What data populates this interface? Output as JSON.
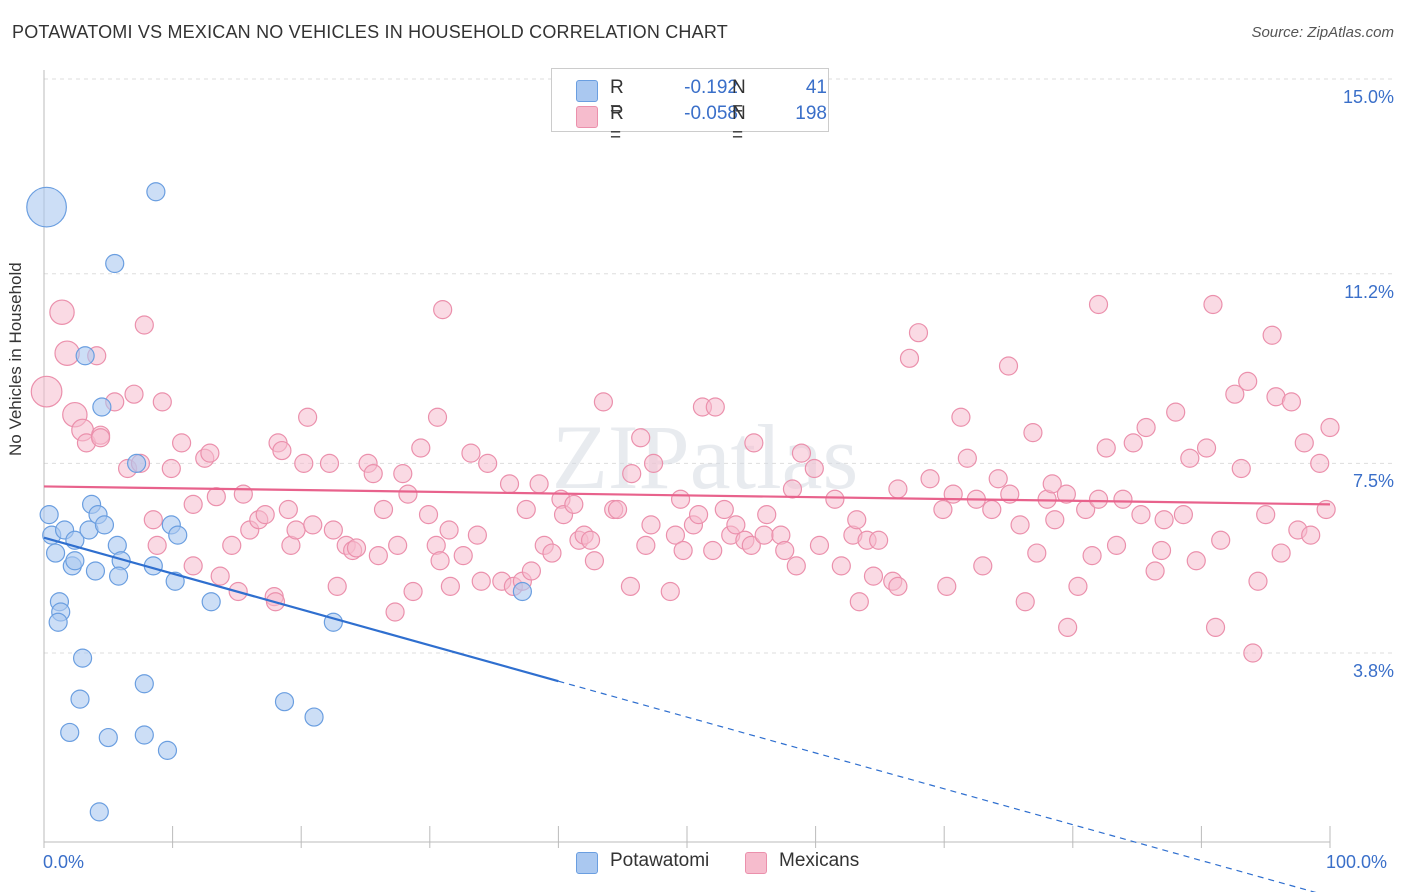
{
  "title": "POTAWATOMI VS MEXICAN NO VEHICLES IN HOUSEHOLD CORRELATION CHART",
  "source": "Source: ZipAtlas.com",
  "watermark": "ZIPatlas",
  "legend_top": {
    "rows": [
      {
        "r_label": "R =",
        "r_value": "-0.192",
        "n_label": "N =",
        "n_value": "41"
      },
      {
        "r_label": "R =",
        "r_value": "-0.058",
        "n_label": "N =",
        "n_value": "198"
      }
    ]
  },
  "legend_bottom": {
    "potawatomi": "Potawatomi",
    "mexicans": "Mexicans"
  },
  "colors": {
    "blue_fill": "#aac8f0",
    "blue_stroke": "#6a9ee0",
    "blue_line": "#2f6fcf",
    "pink_fill": "#f6bccd",
    "pink_stroke": "#eb90ac",
    "pink_line": "#e8628c",
    "axis_text": "#3a6fc9",
    "grid": "#dddddd"
  },
  "chart_data": {
    "type": "scatter",
    "title": "POTAWATOMI VS MEXICAN NO VEHICLES IN HOUSEHOLD CORRELATION CHART",
    "xlabel": "",
    "ylabel": "No Vehicles in Household",
    "xlim": [
      0,
      100
    ],
    "ylim": [
      0,
      15.5
    ],
    "x_tick_labels": [
      "0.0%",
      "100.0%"
    ],
    "y_ticks": [
      3.8,
      7.5,
      11.2,
      15.0
    ],
    "y_tick_labels": [
      "3.8%",
      "7.5%",
      "11.2%",
      "15.0%"
    ],
    "series": [
      {
        "name": "Potawatomi",
        "r": -0.192,
        "n": 41,
        "trend": {
          "x0": 0,
          "y0": 6.05,
          "x1": 40,
          "y1": 3.25,
          "dashed_to_x": 100
        },
        "points": [
          [
            0.2,
            12.5,
            2.2
          ],
          [
            8.7,
            12.8,
            1
          ],
          [
            5.5,
            11.4,
            1
          ],
          [
            3.2,
            9.6,
            1
          ],
          [
            4.5,
            8.6,
            1
          ],
          [
            7.2,
            7.5,
            1
          ],
          [
            0.4,
            6.5,
            1
          ],
          [
            0.6,
            6.1,
            1
          ],
          [
            1.6,
            6.2,
            1
          ],
          [
            2.4,
            6.0,
            1
          ],
          [
            3.5,
            6.2,
            1
          ],
          [
            3.7,
            6.7,
            1
          ],
          [
            4.2,
            6.5,
            1
          ],
          [
            4.7,
            6.3,
            1
          ],
          [
            5.7,
            5.9,
            1
          ],
          [
            6.0,
            5.6,
            1
          ],
          [
            9.9,
            6.3,
            1
          ],
          [
            10.4,
            6.1,
            1
          ],
          [
            0.9,
            5.75,
            1
          ],
          [
            2.2,
            5.5,
            1
          ],
          [
            2.4,
            5.6,
            1
          ],
          [
            4.0,
            5.4,
            1
          ],
          [
            5.8,
            5.3,
            1
          ],
          [
            8.5,
            5.5,
            1
          ],
          [
            10.2,
            5.2,
            1
          ],
          [
            13.0,
            4.8,
            1
          ],
          [
            37.2,
            5.0,
            1
          ],
          [
            22.5,
            4.4,
            1
          ],
          [
            1.2,
            4.8,
            1
          ],
          [
            1.3,
            4.6,
            1
          ],
          [
            1.1,
            4.4,
            1
          ],
          [
            3.0,
            3.7,
            1
          ],
          [
            2.8,
            2.9,
            1
          ],
          [
            7.8,
            3.2,
            1
          ],
          [
            18.7,
            2.85,
            1
          ],
          [
            21.0,
            2.55,
            1
          ],
          [
            2.0,
            2.25,
            1
          ],
          [
            5.0,
            2.15,
            1
          ],
          [
            7.8,
            2.2,
            1
          ],
          [
            9.6,
            1.9,
            1
          ],
          [
            4.3,
            0.7,
            1
          ]
        ]
      },
      {
        "name": "Mexicans",
        "r": -0.058,
        "n": 198,
        "trend": {
          "x0": 0,
          "y0": 7.05,
          "x1": 100,
          "y1": 6.7
        },
        "points": [
          [
            0.2,
            8.9,
            1.7
          ],
          [
            1.4,
            10.45,
            1.35
          ],
          [
            1.8,
            9.65,
            1.35
          ],
          [
            2.4,
            8.45,
            1.35
          ],
          [
            3.0,
            8.15,
            1.2
          ],
          [
            3.3,
            7.9,
            1
          ],
          [
            4.1,
            9.6,
            1
          ],
          [
            4.4,
            8.05,
            1
          ],
          [
            4.4,
            8.0,
            1
          ],
          [
            5.5,
            8.7,
            1
          ],
          [
            6.5,
            7.4,
            1
          ],
          [
            7.0,
            8.85,
            1
          ],
          [
            7.5,
            7.5,
            1
          ],
          [
            7.8,
            10.2,
            1
          ],
          [
            9.2,
            8.7,
            1
          ],
          [
            8.5,
            6.4,
            1
          ],
          [
            8.8,
            5.9,
            1
          ],
          [
            9.9,
            7.4,
            1
          ],
          [
            10.7,
            7.9,
            1
          ],
          [
            11.6,
            6.7,
            1
          ],
          [
            11.6,
            5.5,
            1
          ],
          [
            12.5,
            7.6,
            1
          ],
          [
            12.9,
            7.7,
            1
          ],
          [
            13.4,
            6.85,
            1
          ],
          [
            13.7,
            5.3,
            1
          ],
          [
            14.6,
            5.9,
            1
          ],
          [
            15.1,
            5.0,
            1
          ],
          [
            15.5,
            6.9,
            1
          ],
          [
            16.0,
            6.2,
            1
          ],
          [
            16.7,
            6.4,
            1
          ],
          [
            17.2,
            6.5,
            1
          ],
          [
            17.9,
            4.9,
            1
          ],
          [
            18.0,
            4.8,
            1
          ],
          [
            18.2,
            7.9,
            1
          ],
          [
            18.5,
            7.75,
            1
          ],
          [
            19.2,
            5.9,
            1
          ],
          [
            19.0,
            6.6,
            1
          ],
          [
            19.6,
            6.2,
            1
          ],
          [
            20.2,
            7.5,
            1
          ],
          [
            20.5,
            8.4,
            1
          ],
          [
            20.9,
            6.3,
            1
          ],
          [
            22.2,
            7.5,
            1
          ],
          [
            22.5,
            6.2,
            1
          ],
          [
            22.8,
            5.1,
            1
          ],
          [
            23.5,
            5.9,
            1
          ],
          [
            24.0,
            5.8,
            1
          ],
          [
            24.3,
            5.85,
            1
          ],
          [
            25.2,
            7.5,
            1
          ],
          [
            25.6,
            7.3,
            1
          ],
          [
            26.0,
            5.7,
            1
          ],
          [
            26.4,
            6.6,
            1
          ],
          [
            27.3,
            4.6,
            1
          ],
          [
            27.5,
            5.9,
            1
          ],
          [
            27.9,
            7.3,
            1
          ],
          [
            28.3,
            6.9,
            1
          ],
          [
            28.7,
            5.0,
            1
          ],
          [
            29.3,
            7.8,
            1
          ],
          [
            29.9,
            6.5,
            1
          ],
          [
            30.5,
            5.9,
            1
          ],
          [
            30.6,
            8.4,
            1
          ],
          [
            30.8,
            5.6,
            1
          ],
          [
            31.0,
            10.5,
            1
          ],
          [
            31.5,
            6.2,
            1
          ],
          [
            31.6,
            5.1,
            1
          ],
          [
            32.6,
            5.7,
            1
          ],
          [
            33.2,
            7.7,
            1
          ],
          [
            33.7,
            6.1,
            1
          ],
          [
            34.0,
            5.2,
            1
          ],
          [
            34.5,
            7.5,
            1
          ],
          [
            35.6,
            5.2,
            1
          ],
          [
            36.2,
            7.1,
            1
          ],
          [
            36.5,
            5.1,
            1
          ],
          [
            37.2,
            5.2,
            1
          ],
          [
            37.5,
            6.6,
            1
          ],
          [
            37.9,
            5.4,
            1
          ],
          [
            38.5,
            7.1,
            1
          ],
          [
            38.9,
            5.9,
            1
          ],
          [
            39.5,
            5.75,
            1
          ],
          [
            40.2,
            6.8,
            1
          ],
          [
            40.4,
            6.5,
            1
          ],
          [
            41.2,
            6.7,
            1
          ],
          [
            41.6,
            6.0,
            1
          ],
          [
            42.0,
            6.1,
            1
          ],
          [
            42.5,
            6.0,
            1
          ],
          [
            42.8,
            5.6,
            1
          ],
          [
            43.5,
            8.7,
            1
          ],
          [
            44.3,
            6.6,
            1
          ],
          [
            44.6,
            6.6,
            1
          ],
          [
            45.6,
            5.1,
            1
          ],
          [
            45.7,
            7.3,
            1
          ],
          [
            46.4,
            8.0,
            1
          ],
          [
            46.8,
            5.9,
            1
          ],
          [
            47.2,
            6.3,
            1
          ],
          [
            47.4,
            7.5,
            1
          ],
          [
            48.7,
            5.0,
            1
          ],
          [
            49.1,
            6.1,
            1
          ],
          [
            49.5,
            6.8,
            1
          ],
          [
            49.7,
            5.8,
            1
          ],
          [
            50.5,
            6.3,
            1
          ],
          [
            50.9,
            6.5,
            1
          ],
          [
            51.2,
            8.6,
            1
          ],
          [
            52.0,
            5.8,
            1
          ],
          [
            52.2,
            8.6,
            1
          ],
          [
            52.9,
            6.6,
            1
          ],
          [
            53.4,
            6.1,
            1
          ],
          [
            53.8,
            6.3,
            1
          ],
          [
            54.5,
            6.0,
            1
          ],
          [
            55.0,
            5.9,
            1
          ],
          [
            55.2,
            7.9,
            1
          ],
          [
            56.0,
            6.1,
            1
          ],
          [
            56.2,
            6.5,
            1
          ],
          [
            57.3,
            6.1,
            1
          ],
          [
            57.6,
            5.8,
            1
          ],
          [
            58.2,
            7.0,
            1
          ],
          [
            58.5,
            5.5,
            1
          ],
          [
            58.9,
            7.7,
            1
          ],
          [
            59.9,
            7.4,
            1
          ],
          [
            60.3,
            5.9,
            1
          ],
          [
            61.5,
            6.8,
            1
          ],
          [
            62.0,
            5.5,
            1
          ],
          [
            62.9,
            6.1,
            1
          ],
          [
            63.2,
            6.4,
            1
          ],
          [
            63.4,
            4.8,
            1
          ],
          [
            64.0,
            6.0,
            1
          ],
          [
            64.5,
            5.3,
            1
          ],
          [
            64.9,
            6.0,
            1
          ],
          [
            66.0,
            5.2,
            1
          ],
          [
            66.4,
            5.1,
            1
          ],
          [
            66.4,
            7.0,
            1
          ],
          [
            67.3,
            9.55,
            1
          ],
          [
            68.0,
            10.05,
            1
          ],
          [
            68.9,
            7.2,
            1
          ],
          [
            69.9,
            6.6,
            1
          ],
          [
            70.2,
            5.1,
            1
          ],
          [
            70.7,
            6.9,
            1
          ],
          [
            71.3,
            8.4,
            1
          ],
          [
            71.8,
            7.6,
            1
          ],
          [
            72.5,
            6.8,
            1
          ],
          [
            73.0,
            5.5,
            1
          ],
          [
            73.7,
            6.6,
            1
          ],
          [
            74.2,
            7.2,
            1
          ],
          [
            75.0,
            9.4,
            1
          ],
          [
            75.1,
            6.9,
            1
          ],
          [
            75.9,
            6.3,
            1
          ],
          [
            76.3,
            4.8,
            1
          ],
          [
            76.9,
            8.1,
            1
          ],
          [
            77.2,
            5.75,
            1
          ],
          [
            78.0,
            6.8,
            1
          ],
          [
            78.4,
            7.1,
            1
          ],
          [
            78.6,
            6.4,
            1
          ],
          [
            79.5,
            6.9,
            1
          ],
          [
            79.6,
            4.3,
            1
          ],
          [
            80.4,
            5.1,
            1
          ],
          [
            81.0,
            6.6,
            1
          ],
          [
            81.5,
            5.7,
            1
          ],
          [
            82.0,
            10.6,
            1
          ],
          [
            82.0,
            6.8,
            1
          ],
          [
            82.6,
            7.8,
            1
          ],
          [
            83.4,
            5.9,
            1
          ],
          [
            83.9,
            6.8,
            1
          ],
          [
            84.7,
            7.9,
            1
          ],
          [
            85.3,
            6.5,
            1
          ],
          [
            85.7,
            8.2,
            1
          ],
          [
            86.4,
            5.4,
            1
          ],
          [
            86.9,
            5.8,
            1
          ],
          [
            87.1,
            6.4,
            1
          ],
          [
            88.0,
            8.5,
            1
          ],
          [
            88.6,
            6.5,
            1
          ],
          [
            89.1,
            7.6,
            1
          ],
          [
            89.6,
            5.6,
            1
          ],
          [
            90.4,
            7.8,
            1
          ],
          [
            90.9,
            10.6,
            1
          ],
          [
            91.1,
            4.3,
            1
          ],
          [
            91.5,
            6.0,
            1
          ],
          [
            92.6,
            8.85,
            1
          ],
          [
            93.1,
            7.4,
            1
          ],
          [
            93.6,
            9.1,
            1
          ],
          [
            94.0,
            3.8,
            1
          ],
          [
            94.4,
            5.2,
            1
          ],
          [
            95.0,
            6.5,
            1
          ],
          [
            95.5,
            10.0,
            1
          ],
          [
            95.8,
            8.8,
            1
          ],
          [
            96.2,
            5.75,
            1
          ],
          [
            97.0,
            8.7,
            1
          ],
          [
            97.5,
            6.2,
            1
          ],
          [
            98.0,
            7.9,
            1
          ],
          [
            98.5,
            6.1,
            1
          ],
          [
            99.2,
            7.5,
            1
          ],
          [
            99.7,
            6.6,
            1
          ],
          [
            100.0,
            8.2,
            1
          ]
        ]
      }
    ]
  }
}
